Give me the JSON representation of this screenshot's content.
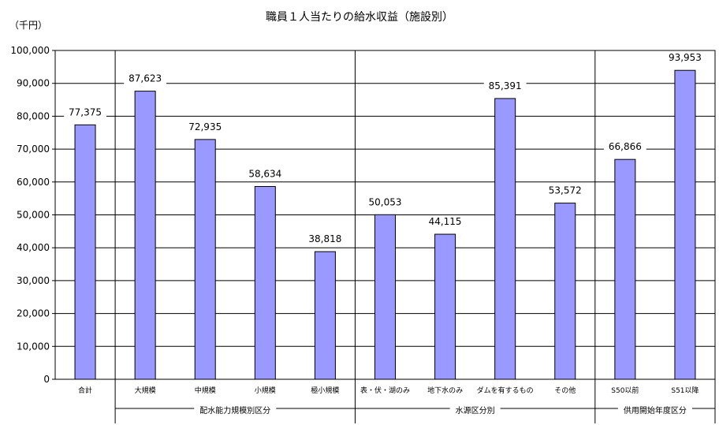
{
  "chart_data": {
    "type": "bar",
    "title": "職員１人当たりの給水収益（施設別）",
    "unit_label": "（千円）",
    "ylim": [
      0,
      100000
    ],
    "yticks": [
      "0",
      "10,000",
      "20,000",
      "30,000",
      "40,000",
      "50,000",
      "60,000",
      "70,000",
      "80,000",
      "90,000",
      "100,000"
    ],
    "grid": true,
    "categories": [
      "合計",
      "大規模",
      "中規模",
      "小規模",
      "極小規模",
      "表・伏・湖のみ",
      "地下水のみ",
      "ダムを有するもの",
      "その他",
      "S50以前",
      "S51以降"
    ],
    "values": [
      77375,
      87623,
      72935,
      58634,
      38818,
      50053,
      44115,
      85391,
      53572,
      66866,
      93953
    ],
    "value_labels": [
      "77,375",
      "87,623",
      "72,935",
      "58,634",
      "38,818",
      "50,053",
      "44,115",
      "85,391",
      "53,572",
      "66,866",
      "93,953"
    ],
    "groups": [
      {
        "label": "配水能力規模別区分",
        "start": 1,
        "end": 4
      },
      {
        "label": "水源区分別",
        "start": 5,
        "end": 8
      },
      {
        "label": "供用開始年度区分",
        "start": 9,
        "end": 10
      }
    ],
    "colors": {
      "bar_fill": "#9999ff",
      "bar_stroke": "#000000"
    }
  }
}
